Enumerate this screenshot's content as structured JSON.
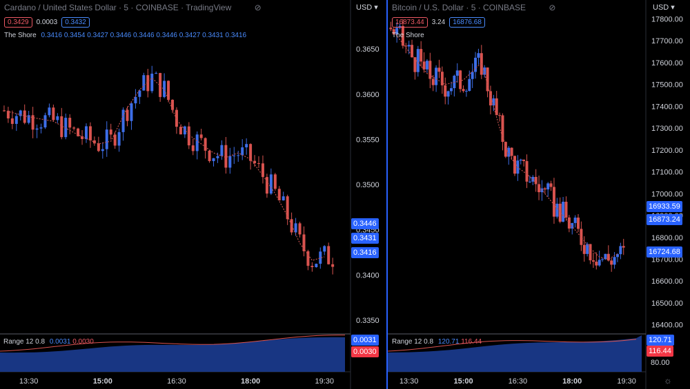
{
  "left": {
    "title": "Cardano / United States Dollar · 5 · COINBASE · TradingView",
    "quote": {
      "bid": "0.3429",
      "spread": "0.0003",
      "ask": "0.3432"
    },
    "indicator": {
      "name": "The Shore",
      "values": [
        "0.3416",
        "0.3454",
        "0.3427",
        "0.3446",
        "0.3446",
        "0.3446",
        "0.3427",
        "0.3431",
        "0.3416"
      ]
    },
    "range": {
      "name": "Range 12 0.8",
      "v1": "0.0031",
      "v2": "0.0030"
    },
    "currency": "USD",
    "y_ticks": [
      "0.3650",
      "0.3600",
      "0.3550",
      "0.3500",
      "0.3450",
      "0.3400",
      "0.3350"
    ],
    "price_labels": [
      "0.3446",
      "0.3431",
      "0.3416"
    ],
    "range_labels": [
      "0.0031",
      "0.0030"
    ],
    "x_ticks": [
      {
        "label": "13:30",
        "bold": false
      },
      {
        "label": "15:00",
        "bold": true
      },
      {
        "label": "16:30",
        "bold": false
      },
      {
        "label": "18:00",
        "bold": true
      },
      {
        "label": "19:30",
        "bold": false
      }
    ]
  },
  "right": {
    "title": "Bitcoin / U.S. Dollar · 5 · COINBASE",
    "quote": {
      "bid": "16873.44",
      "spread": "3.24",
      "ask": "16876.68"
    },
    "indicator": {
      "name": "The Shore"
    },
    "range": {
      "name": "Range 12 0.8",
      "v1": "120.71",
      "v2": "116.44"
    },
    "currency": "USD",
    "y_ticks": [
      "17800.00",
      "17700.00",
      "17600.00",
      "17500.00",
      "17400.00",
      "17300.00",
      "17200.00",
      "17100.00",
      "17000.00",
      "16900.00",
      "16800.00",
      "16700.00",
      "16600.00",
      "16500.00",
      "16400.00"
    ],
    "price_labels": [
      "16933.59",
      "16873.24",
      "16724.68"
    ],
    "range_labels": [
      "120.71",
      "116.44",
      "80.00"
    ],
    "x_ticks": [
      {
        "label": "13:30",
        "bold": false
      },
      {
        "label": "15:00",
        "bold": true
      },
      {
        "label": "16:30",
        "bold": false
      },
      {
        "label": "18:00",
        "bold": true
      },
      {
        "label": "19:30",
        "bold": false
      }
    ]
  },
  "icons": {
    "eye": "eye-slash-icon",
    "settings": "gear-icon"
  },
  "colors": {
    "up": "#3d6ee8",
    "down": "#d9534f",
    "accent": "#2962ff"
  },
  "chart_data": [
    {
      "type": "candlestick",
      "title": "Cardano / United States Dollar · 5 · COINBASE",
      "ylim": [
        0.334,
        0.367
      ],
      "xlim": [
        "12:55",
        "19:55"
      ],
      "series": [
        {
          "name": "The Shore",
          "x": [
            "13:00",
            "13:30",
            "14:00",
            "14:30",
            "14:55",
            "15:10",
            "15:30",
            "15:45",
            "16:00",
            "16:15",
            "16:30",
            "16:45",
            "17:00",
            "17:15",
            "17:30",
            "17:45",
            "18:00",
            "18:15",
            "18:30",
            "18:45",
            "19:00",
            "19:15",
            "19:30"
          ],
          "values": [
            0.3582,
            0.3575,
            0.357,
            0.3555,
            0.3545,
            0.3548,
            0.3585,
            0.3605,
            0.3618,
            0.3605,
            0.3572,
            0.3555,
            0.3545,
            0.3535,
            0.353,
            0.3535,
            0.3528,
            0.351,
            0.349,
            0.3465,
            0.3435,
            0.3416,
            0.342
          ]
        }
      ]
    },
    {
      "type": "candlestick",
      "title": "Bitcoin / U.S. Dollar · 5 · COINBASE",
      "ylim": [
        16380,
        17830
      ],
      "xlim": [
        "12:55",
        "19:55"
      ],
      "series": [
        {
          "name": "The Shore",
          "x": [
            "13:00",
            "13:30",
            "14:00",
            "14:30",
            "15:00",
            "15:15",
            "15:30",
            "15:45",
            "16:00",
            "16:15",
            "16:30",
            "16:45",
            "17:00",
            "17:15",
            "17:30",
            "17:45",
            "18:00",
            "18:15",
            "18:30",
            "18:45",
            "19:00",
            "19:15"
          ],
          "values": [
            17760,
            17650,
            17550,
            17500,
            17520,
            17560,
            17600,
            17450,
            17300,
            17180,
            17120,
            17090,
            17050,
            17000,
            16950,
            16900,
            16850,
            16800,
            16750,
            16710,
            16700,
            16725
          ]
        }
      ]
    }
  ]
}
